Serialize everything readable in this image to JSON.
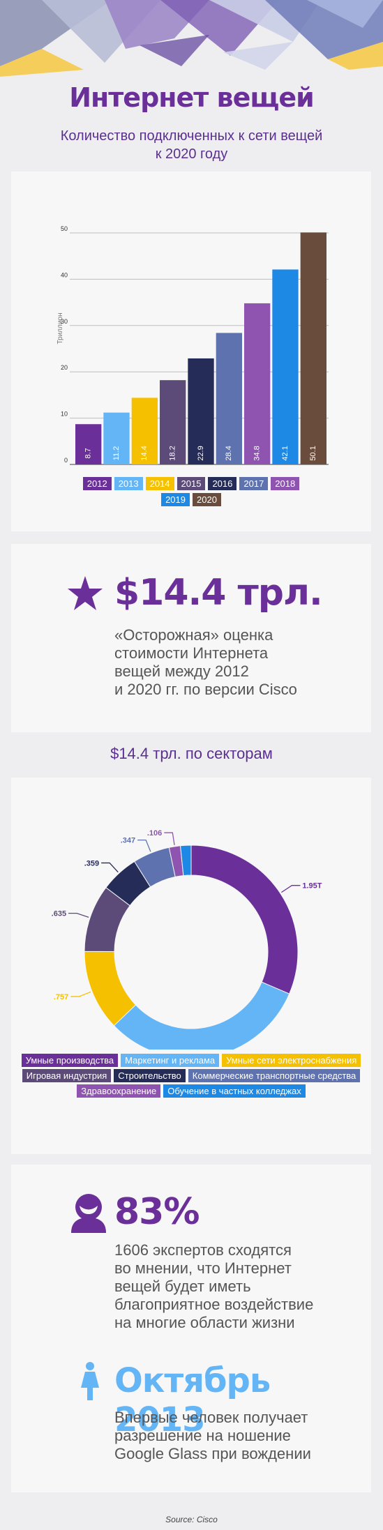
{
  "header": {
    "title": "Интернет вещей",
    "subtitle": "Количество подключенных к сети вещей к 2020 году"
  },
  "chart_data": [
    {
      "type": "bar",
      "ylabel": "Триллион",
      "ylim": [
        0,
        50
      ],
      "yticks": [
        0,
        10,
        20,
        30,
        40,
        50
      ],
      "grid": true,
      "categories": [
        "2012",
        "2013",
        "2014",
        "2015",
        "2016",
        "2017",
        "2018",
        "2019",
        "2020"
      ],
      "values": [
        8.7,
        11.2,
        14.4,
        18.2,
        22.9,
        28.4,
        34.8,
        42.1,
        50.1
      ],
      "value_labels": [
        "8.7",
        "11.2",
        "14.4",
        "18.2",
        "22.9",
        "28.4",
        "34.8",
        "42.1",
        "50.1"
      ],
      "colors": [
        "#6a2f98",
        "#64b5f6",
        "#f5c000",
        "#5c4a78",
        "#262c58",
        "#5e72b0",
        "#8e54b0",
        "#1e88e5",
        "#6a4c3c"
      ],
      "legend_placement": "bottom"
    },
    {
      "type": "pie",
      "title": "$14.4 трл. по секторам",
      "donut": true,
      "categories": [
        "Умные производства",
        "Маркетинг и реклама",
        "Умные сети электроснабжения",
        "Игровая индустрия",
        "Строительство",
        "Коммерческие транспортные средства",
        "Здравоохранение",
        "Обучение в частных колледжах"
      ],
      "values": [
        1.95,
        1.95,
        0.757,
        0.635,
        0.359,
        0.347,
        0.106,
        0.1
      ],
      "value_labels": [
        "1.95T",
        "1.95T",
        ".757",
        ".635",
        ".359",
        ".347",
        ".106",
        ""
      ],
      "colors": [
        "#6a2f98",
        "#64b5f6",
        "#f5c000",
        "#5c4a78",
        "#262c58",
        "#5e72b0",
        "#8e54b0",
        "#1e88e5"
      ],
      "legend_placement": "bottom"
    }
  ],
  "valuation": {
    "amount": "$14.4 трл.",
    "line1": "«Осторожная» оценка",
    "line2": "стоимости Интернета",
    "line3": "вещей между 2012",
    "line4": "и 2020 гг. по версии Cisco"
  },
  "experts": {
    "percent": "83%",
    "line1": "1606 экспертов сходятся",
    "line2": "во мнении, что Интернет",
    "line3": "вещей будет иметь",
    "line4": "благоприятное воздействие",
    "line5": "на многие области жизни"
  },
  "glass": {
    "date": "Октябрь 2013",
    "line1": "Впервые человек получает",
    "line2": "разрешение на ношение",
    "line3": "Google Glass при вождении"
  },
  "footer": {
    "source": "Source: Cisco"
  },
  "colors": {
    "purple": "#6a2f98",
    "lightblue": "#64b5f6",
    "yellow": "#f5c000",
    "gray_text": "#555555"
  }
}
